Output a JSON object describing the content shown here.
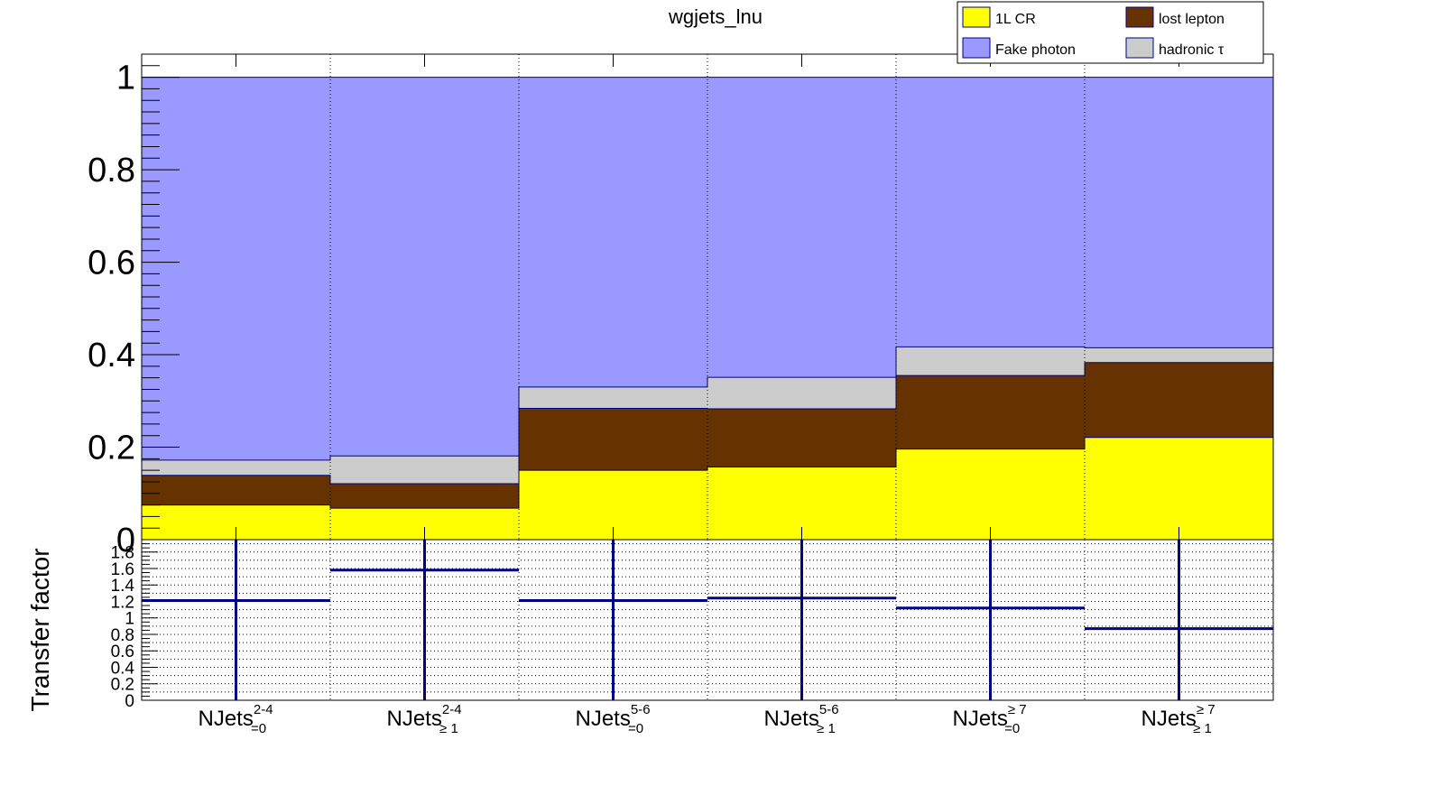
{
  "chart_data": [
    {
      "type": "area",
      "title": "wgjets_lnu",
      "xlabel": "",
      "ylabel": "",
      "ylim": [
        0,
        1.05
      ],
      "y_ticks": [
        "0",
        "0.2",
        "0.4",
        "0.6",
        "0.8",
        "1"
      ],
      "stacking": "stacked step histogram, fractions sum to 1",
      "bins": [
        {
          "base": "NJets",
          "sup": "2-4",
          "sub": "=0"
        },
        {
          "base": "NJets",
          "sup": "2-4",
          "sub": "≥ 1"
        },
        {
          "base": "NJets",
          "sup": "5-6",
          "sub": "=0"
        },
        {
          "base": "NJets",
          "sup": "5-6",
          "sub": "≥ 1"
        },
        {
          "base": "NJets",
          "sup": "≥ 7",
          "sub": "=0"
        },
        {
          "base": "NJets",
          "sup": "≥ 7",
          "sub": "≥ 1"
        }
      ],
      "series": [
        {
          "name": "1L CR",
          "color": "#ffff00",
          "values": [
            0.075,
            0.068,
            0.15,
            0.157,
            0.196,
            0.221
          ]
        },
        {
          "name": "lost lepton",
          "color": "#663300",
          "values": [
            0.064,
            0.053,
            0.134,
            0.126,
            0.159,
            0.162
          ]
        },
        {
          "name": "hadronic τ",
          "color": "#cccccc",
          "values": [
            0.033,
            0.06,
            0.046,
            0.068,
            0.062,
            0.032
          ]
        },
        {
          "name": "Fake photon",
          "color": "#9999ff",
          "values": [
            0.828,
            0.819,
            0.67,
            0.649,
            0.583,
            0.585
          ]
        }
      ],
      "legend": {
        "placement": "top-right",
        "entries": [
          {
            "label": "1L CR",
            "color": "#ffff00"
          },
          {
            "label": "lost lepton",
            "color": "#663300"
          },
          {
            "label": "Fake photon",
            "color": "#9999ff"
          },
          {
            "label": "hadronic τ",
            "color": "#cccccc"
          }
        ]
      },
      "grid": "vertical dotted at bin edges"
    },
    {
      "type": "scatter",
      "ylabel": "Transfer factor",
      "ylim": [
        0,
        1.95
      ],
      "y_ticks": [
        "0",
        "0.2",
        "0.4",
        "0.6",
        "0.8",
        "1",
        "1.2",
        "1.4",
        "1.6",
        "1.8"
      ],
      "series": [
        {
          "name": "",
          "color": "#000080",
          "values": [
            1.21,
            1.58,
            1.21,
            1.24,
            1.12,
            0.87
          ]
        }
      ],
      "error_bars": "full height",
      "grid": "dotted horizontal at every 0.1, vertical at bin edges"
    }
  ]
}
